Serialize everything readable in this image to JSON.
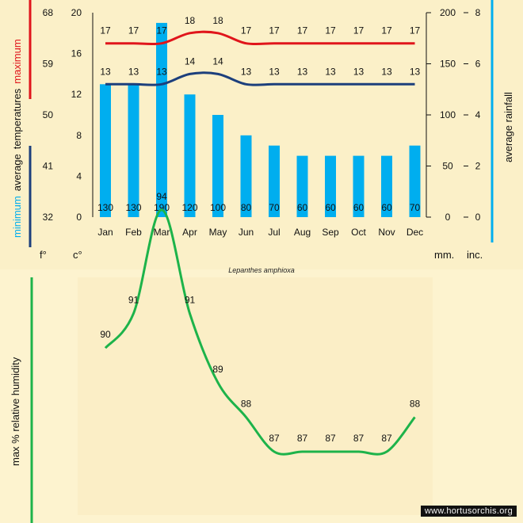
{
  "species": "Lepanthes amphioxa",
  "credit": "www.hortusorchis.org",
  "units": {
    "fahrenheit": "f°",
    "celsius": "c°",
    "mm": "mm.",
    "inches": "inc."
  },
  "labels": {
    "left_vertical": {
      "minimum": "minimum",
      "average": "average",
      "temperatures": "temperatures",
      "maximum": "maximum"
    },
    "right_vertical": "average rainfall",
    "humidity_vertical": "max % relative humidity"
  },
  "colors": {
    "max": "#e0151b",
    "min": "#1c3f7c",
    "rain": "#00aeef",
    "humidity": "#1db34a",
    "bg": "#fbf0c8"
  },
  "chart_data": [
    {
      "type": "bar",
      "name": "climate",
      "categories": [
        "Jan",
        "Feb",
        "Mar",
        "Apr",
        "May",
        "Jun",
        "Jul",
        "Aug",
        "Sep",
        "Oct",
        "Nov",
        "Dec"
      ],
      "series": [
        {
          "name": "maximum",
          "kind": "line",
          "axis": "celsius",
          "values": [
            17,
            17,
            17,
            18,
            18,
            17,
            17,
            17,
            17,
            17,
            17,
            17
          ]
        },
        {
          "name": "minimum",
          "kind": "line",
          "axis": "celsius",
          "values": [
            13,
            13,
            13,
            14,
            14,
            13,
            13,
            13,
            13,
            13,
            13,
            13
          ]
        },
        {
          "name": "average rainfall",
          "kind": "bar",
          "axis": "mm",
          "values": [
            130,
            130,
            190,
            120,
            100,
            80,
            70,
            60,
            60,
            60,
            60,
            70
          ]
        }
      ],
      "axes": {
        "fahrenheit": {
          "ticks": [
            32,
            41,
            50,
            59,
            68
          ]
        },
        "celsius": {
          "ticks": [
            0,
            4,
            8,
            12,
            16,
            20
          ],
          "range": [
            0,
            20
          ]
        },
        "mm": {
          "ticks": [
            0,
            50,
            100,
            150,
            200
          ],
          "range": [
            0,
            200
          ]
        },
        "inches": {
          "ticks": [
            0,
            2,
            4,
            6,
            8
          ]
        }
      }
    },
    {
      "type": "line",
      "name": "humidity",
      "categories": [
        "Jan",
        "Feb",
        "Mar",
        "Apr",
        "May",
        "Jun",
        "Jul",
        "Aug",
        "Sep",
        "Oct",
        "Nov",
        "Dec"
      ],
      "values": [
        90,
        91,
        94,
        91,
        89,
        88,
        87,
        87,
        87,
        87,
        87,
        88
      ]
    }
  ]
}
